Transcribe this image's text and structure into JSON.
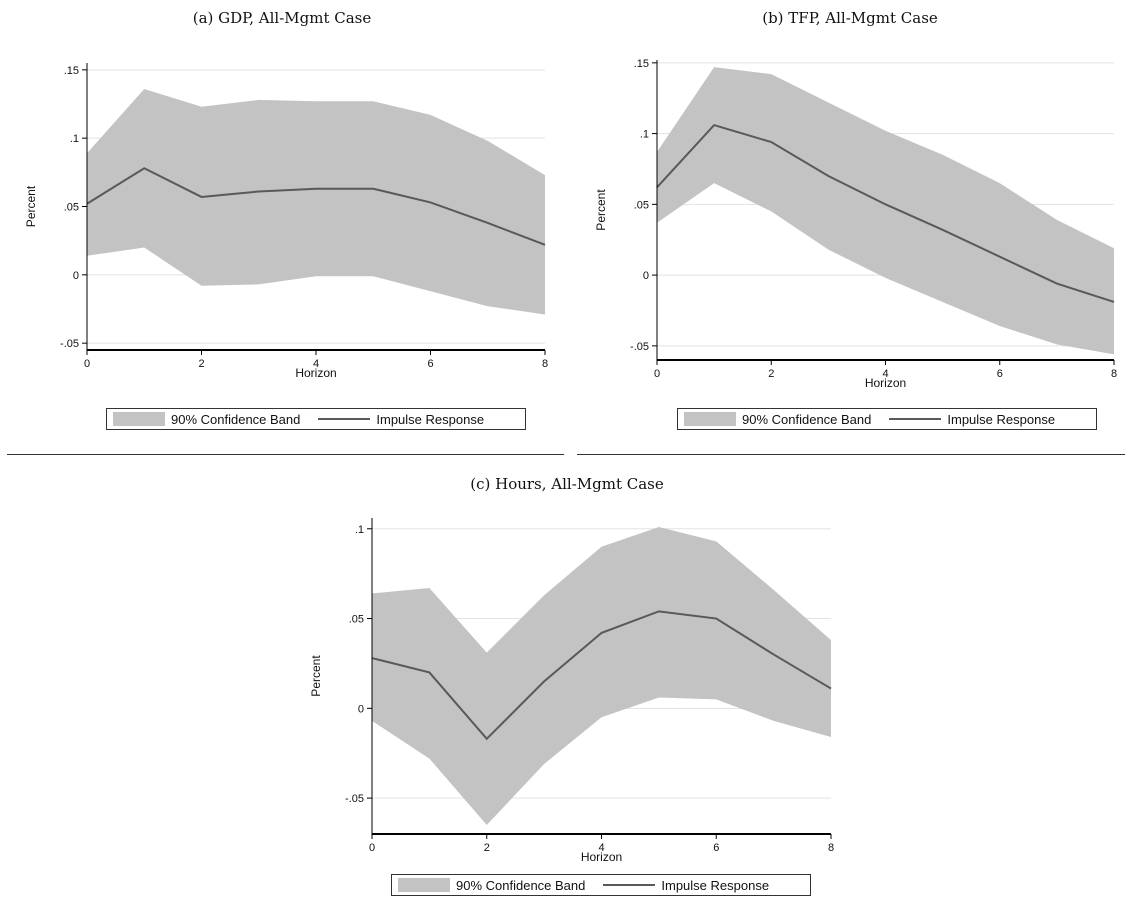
{
  "legend": {
    "band_label": "90% Confidence Band",
    "line_label": "Impulse Response"
  },
  "colors": {
    "band": "#c3c3c3",
    "line": "#595959",
    "grid": "#e3e3e3",
    "axis": "#000000"
  },
  "chart_data": [
    {
      "type": "line",
      "title": "(a) GDP, All-Mgmt Case",
      "xlabel": "Horizon",
      "ylabel": "Percent",
      "xlim": [
        0,
        8
      ],
      "ylim": [
        -0.055,
        0.155
      ],
      "xticks": [
        0,
        2,
        4,
        6,
        8
      ],
      "xtick_labels": [
        "0",
        "2",
        "4",
        "6",
        "8"
      ],
      "yticks": [
        -0.05,
        0,
        0.05,
        0.1,
        0.15
      ],
      "ytick_labels": [
        "-.05",
        "0",
        ".05",
        ".1",
        ".15"
      ],
      "grid": true,
      "legend_position": "bottom",
      "x": [
        0,
        1,
        2,
        3,
        4,
        5,
        6,
        7,
        8
      ],
      "series": [
        {
          "name": "Impulse Response",
          "values": [
            0.052,
            0.078,
            0.057,
            0.061,
            0.063,
            0.063,
            0.053,
            0.038,
            0.022
          ]
        },
        {
          "name": "90% Confidence Band",
          "upper": [
            0.089,
            0.136,
            0.123,
            0.128,
            0.127,
            0.127,
            0.117,
            0.098,
            0.073
          ],
          "lower": [
            0.014,
            0.02,
            -0.008,
            -0.007,
            -0.001,
            -0.001,
            -0.012,
            -0.023,
            -0.029
          ]
        }
      ]
    },
    {
      "type": "line",
      "title": "(b) TFP, All-Mgmt Case",
      "xlabel": "Horizon",
      "ylabel": "Percent",
      "xlim": [
        0,
        8
      ],
      "ylim": [
        -0.06,
        0.152
      ],
      "xticks": [
        0,
        2,
        4,
        6,
        8
      ],
      "xtick_labels": [
        "0",
        "2",
        "4",
        "6",
        "8"
      ],
      "yticks": [
        -0.05,
        0,
        0.05,
        0.1,
        0.15
      ],
      "ytick_labels": [
        "-.05",
        "0",
        ".05",
        ".1",
        ".15"
      ],
      "grid": true,
      "legend_position": "bottom",
      "x": [
        0,
        1,
        2,
        3,
        4,
        5,
        6,
        7,
        8
      ],
      "series": [
        {
          "name": "Impulse Response",
          "values": [
            0.062,
            0.106,
            0.094,
            0.07,
            0.05,
            0.032,
            0.013,
            -0.006,
            -0.019
          ]
        },
        {
          "name": "90% Confidence Band",
          "upper": [
            0.087,
            0.147,
            0.142,
            0.122,
            0.102,
            0.085,
            0.065,
            0.039,
            0.019
          ],
          "lower": [
            0.037,
            0.065,
            0.045,
            0.018,
            -0.002,
            -0.019,
            -0.036,
            -0.049,
            -0.056
          ]
        }
      ]
    },
    {
      "type": "line",
      "title": "(c) Hours, All-Mgmt Case",
      "xlabel": "Horizon",
      "ylabel": "Percent",
      "xlim": [
        0,
        8
      ],
      "ylim": [
        -0.07,
        0.106
      ],
      "xticks": [
        0,
        2,
        4,
        6,
        8
      ],
      "xtick_labels": [
        "0",
        "2",
        "4",
        "6",
        "8"
      ],
      "yticks": [
        -0.05,
        0,
        0.05,
        0.1
      ],
      "ytick_labels": [
        "-.05",
        "0",
        ".05",
        ".1"
      ],
      "grid": true,
      "legend_position": "bottom",
      "x": [
        0,
        1,
        2,
        3,
        4,
        5,
        6,
        7,
        8
      ],
      "series": [
        {
          "name": "Impulse Response",
          "values": [
            0.028,
            0.02,
            -0.017,
            0.015,
            0.042,
            0.054,
            0.05,
            0.03,
            0.011
          ]
        },
        {
          "name": "90% Confidence Band",
          "upper": [
            0.064,
            0.067,
            0.031,
            0.063,
            0.09,
            0.101,
            0.093,
            0.066,
            0.038
          ],
          "lower": [
            -0.007,
            -0.028,
            -0.065,
            -0.031,
            -0.005,
            0.006,
            0.005,
            -0.007,
            -0.016
          ]
        }
      ]
    }
  ]
}
